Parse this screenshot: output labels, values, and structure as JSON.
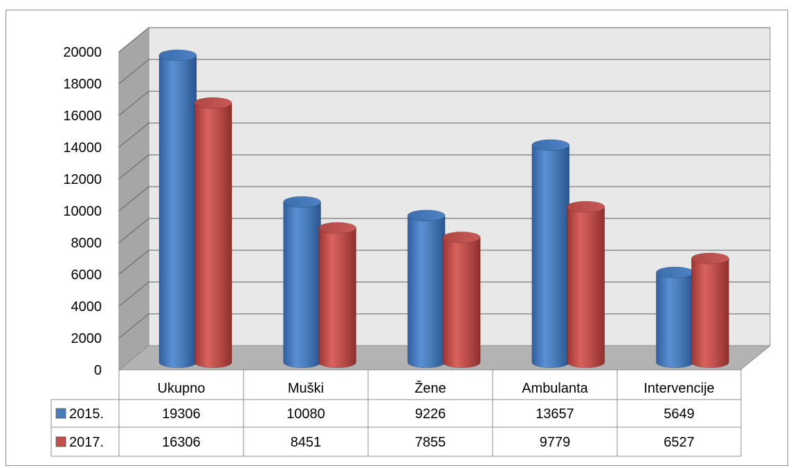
{
  "chart_data": {
    "type": "bar",
    "categories": [
      "Ukupno",
      "Muški",
      "Žene",
      "Ambulanta",
      "Intervencije"
    ],
    "series": [
      {
        "name": "2015.",
        "values": [
          19306,
          10080,
          9226,
          13657,
          5649
        ],
        "color": "#4a7ebb"
      },
      {
        "name": "2017.",
        "values": [
          16306,
          8451,
          7855,
          9779,
          6527
        ],
        "color": "#c0504d"
      }
    ],
    "title": "",
    "xlabel": "",
    "ylabel": "",
    "ylim": [
      0,
      20000
    ],
    "yticks": [
      0,
      2000,
      4000,
      6000,
      8000,
      10000,
      12000,
      14000,
      16000,
      18000,
      20000
    ],
    "grid": true,
    "style": "3d-cylinder",
    "data_table": {
      "rows": [
        {
          "label": "2015.",
          "values": [
            "19306",
            "10080",
            "9226",
            "13657",
            "5649"
          ]
        },
        {
          "label": "2017.",
          "values": [
            "16306",
            "8451",
            "7855",
            "9779",
            "6527"
          ]
        }
      ]
    }
  }
}
